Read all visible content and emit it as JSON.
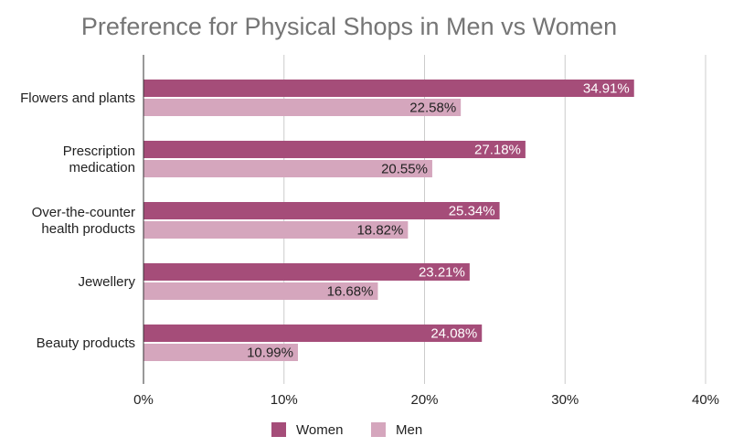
{
  "chart_data": {
    "type": "bar",
    "orientation": "horizontal",
    "title": "Preference for Physical Shops in Men vs Women",
    "categories": [
      [
        "Flowers and plants"
      ],
      [
        "Prescription",
        "medication"
      ],
      [
        "Over-the-counter",
        "health products"
      ],
      [
        "Jewellery"
      ],
      [
        "Beauty products"
      ]
    ],
    "series": [
      {
        "name": "Women",
        "color": "#a54d79",
        "label_color": "#ffffff",
        "values": [
          34.91,
          27.18,
          25.34,
          23.21,
          24.08
        ],
        "labels": [
          "34.91%",
          "27.18%",
          "25.34%",
          "23.21%",
          "24.08%"
        ]
      },
      {
        "name": "Men",
        "color": "#d5a6bd",
        "label_color": "#222222",
        "values": [
          22.58,
          20.55,
          18.82,
          16.68,
          10.99
        ],
        "labels": [
          "22.58%",
          "20.55%",
          "18.82%",
          "16.68%",
          "10.99%"
        ]
      }
    ],
    "xlim": [
      0,
      40
    ],
    "xticks": [
      {
        "value": 0,
        "label": "0%"
      },
      {
        "value": 10,
        "label": "10%"
      },
      {
        "value": 20,
        "label": "20%"
      },
      {
        "value": 30,
        "label": "30%"
      },
      {
        "value": 40,
        "label": "40%"
      }
    ],
    "grid": true,
    "legend_position": "bottom"
  }
}
